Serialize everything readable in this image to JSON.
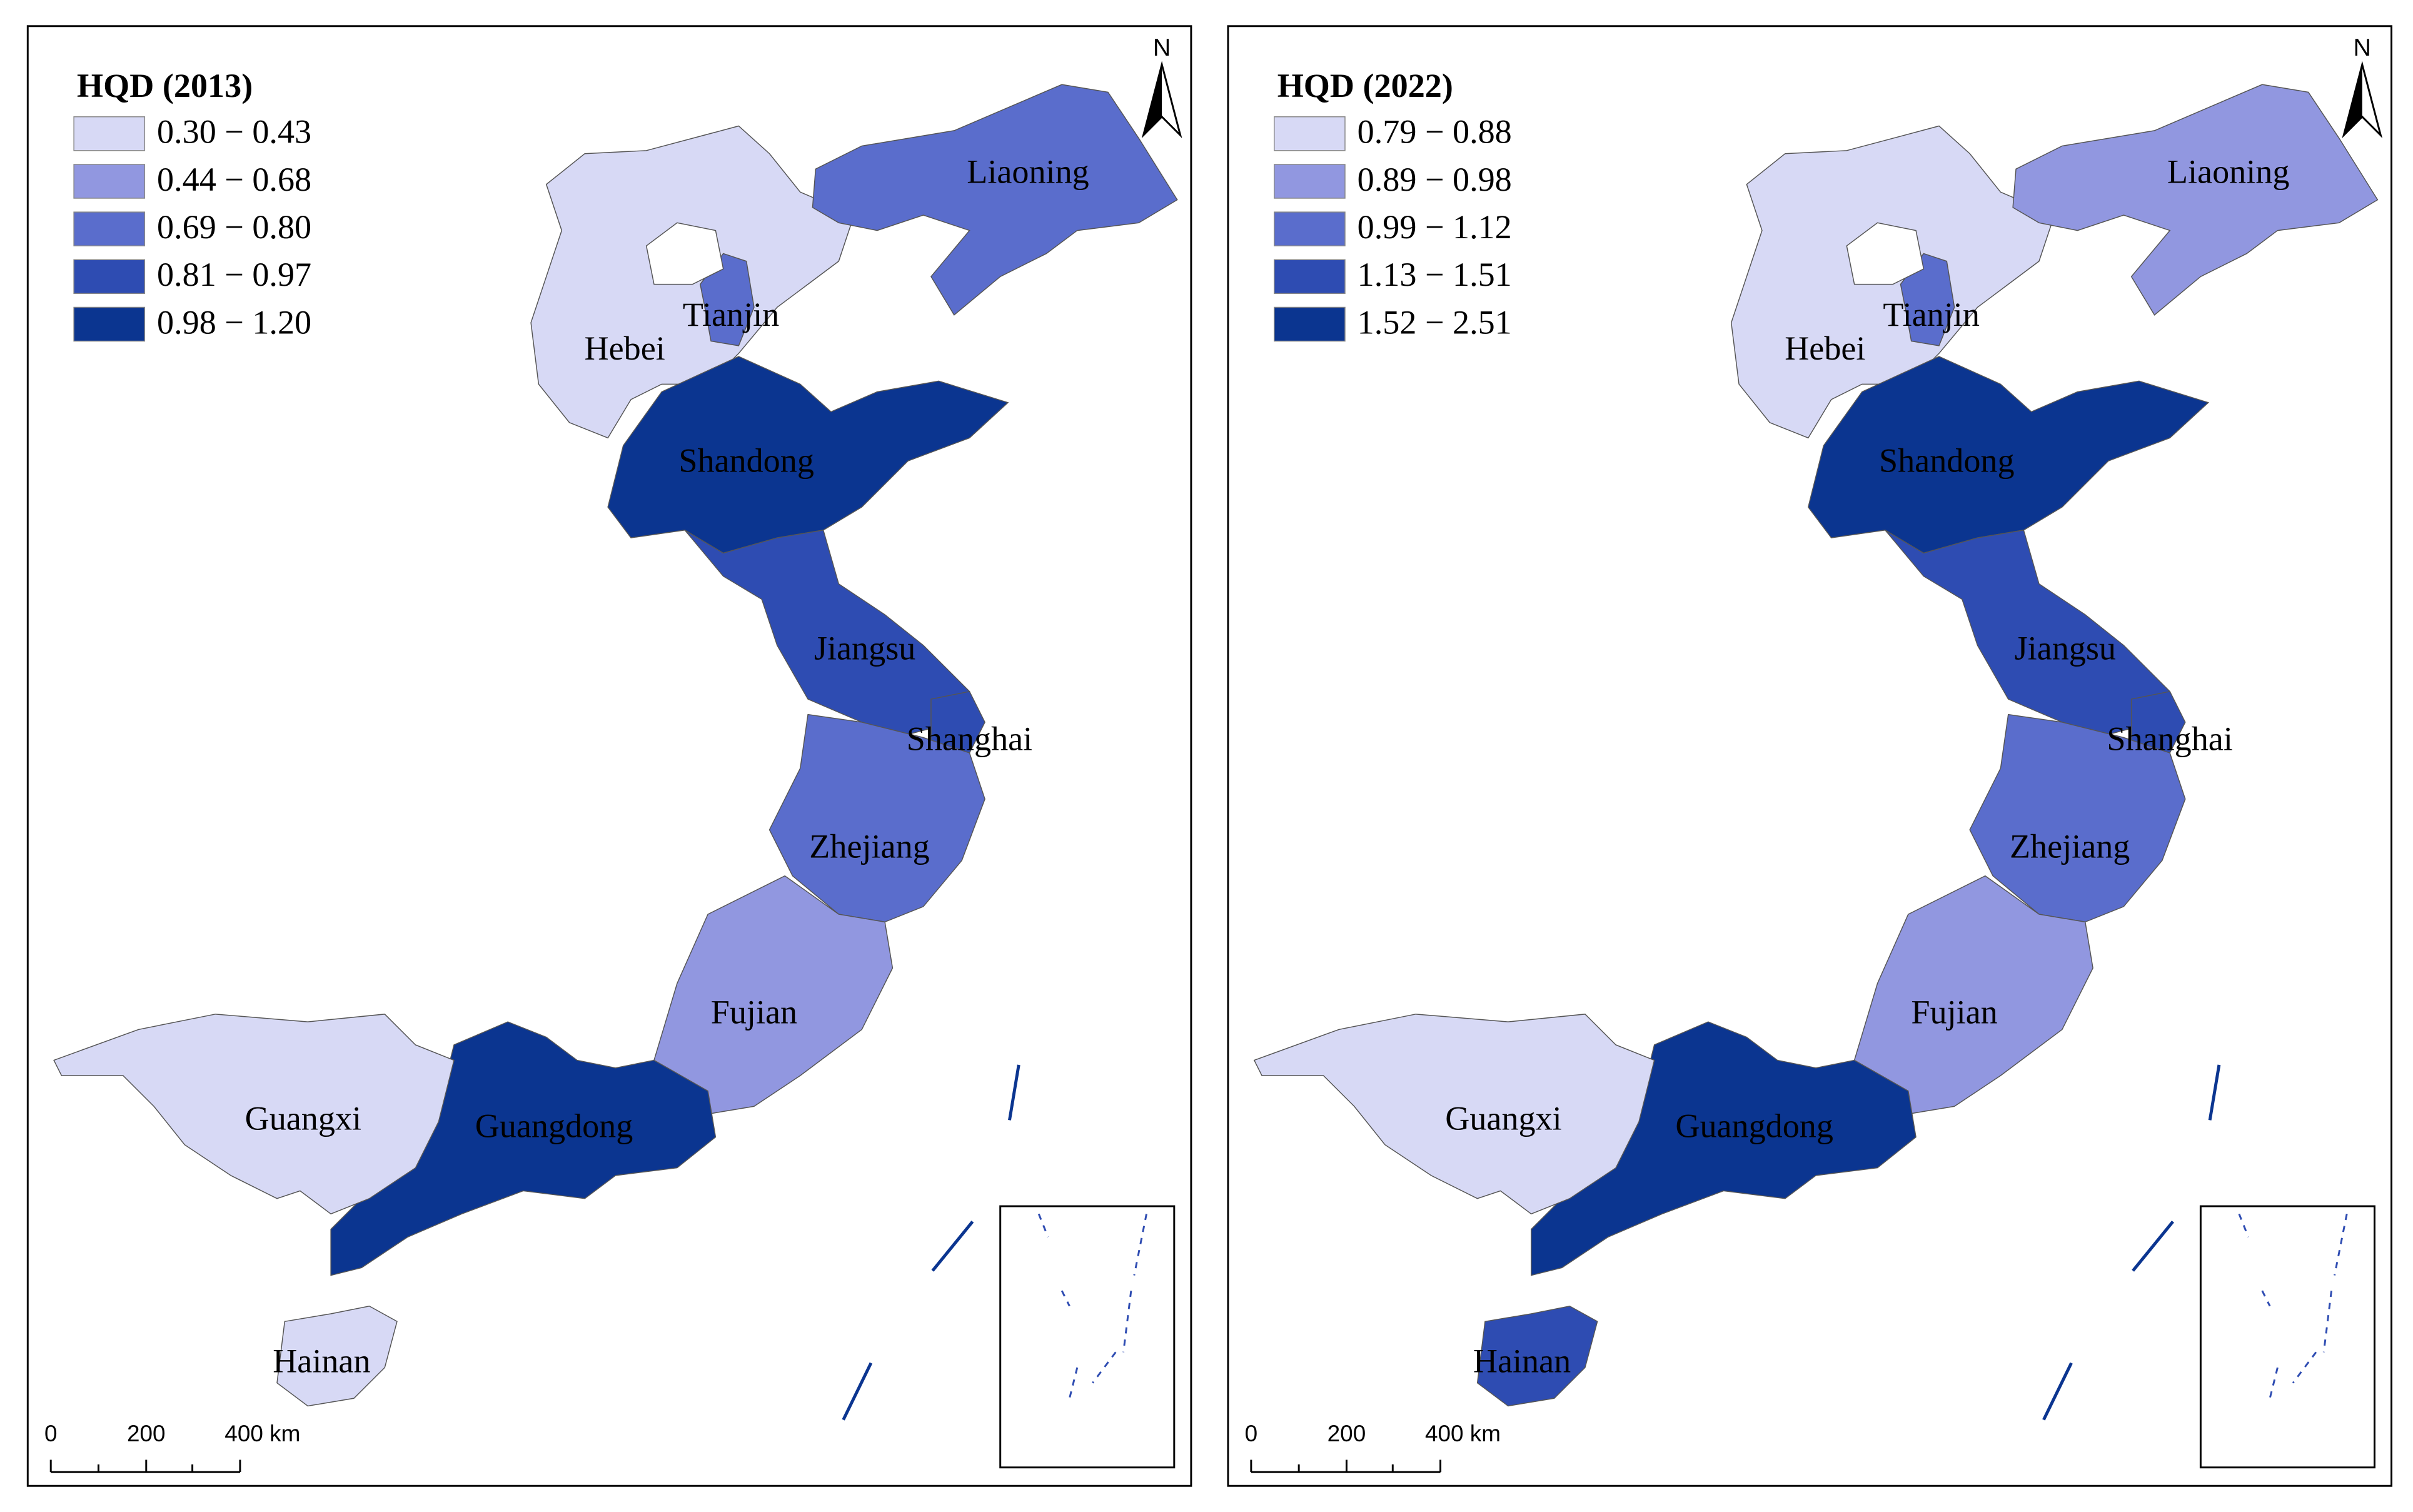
{
  "maps": [
    {
      "title": "HQD (2013)",
      "north": "N",
      "legend": [
        {
          "label": "0.30 − 0.43",
          "color": "#d7d9f5"
        },
        {
          "label": "0.44 − 0.68",
          "color": "#9197e0"
        },
        {
          "label": "0.69 − 0.80",
          "color": "#5a6dcc"
        },
        {
          "label": "0.81 − 0.97",
          "color": "#2e4cb2"
        },
        {
          "label": "0.98 − 1.20",
          "color": "#0b3590"
        }
      ],
      "regions": [
        {
          "name": "Hebei",
          "class": 0
        },
        {
          "name": "Tianjin",
          "class": 2
        },
        {
          "name": "Liaoning",
          "class": 2
        },
        {
          "name": "Shandong",
          "class": 4
        },
        {
          "name": "Jiangsu",
          "class": 3
        },
        {
          "name": "Shanghai",
          "class": 3
        },
        {
          "name": "Zhejiang",
          "class": 2
        },
        {
          "name": "Fujian",
          "class": 1
        },
        {
          "name": "Guangdong",
          "class": 4
        },
        {
          "name": "Guangxi",
          "class": 0
        },
        {
          "name": "Hainan",
          "class": 0
        }
      ],
      "scale": [
        "0",
        "200",
        "400 km"
      ]
    },
    {
      "title": "HQD (2022)",
      "north": "N",
      "legend": [
        {
          "label": "0.79 − 0.88",
          "color": "#d7d9f5"
        },
        {
          "label": "0.89 − 0.98",
          "color": "#9197e0"
        },
        {
          "label": "0.99 − 1.12",
          "color": "#5a6dcc"
        },
        {
          "label": "1.13 − 1.51",
          "color": "#2e4cb2"
        },
        {
          "label": "1.52 − 2.51",
          "color": "#0b3590"
        }
      ],
      "regions": [
        {
          "name": "Hebei",
          "class": 0
        },
        {
          "name": "Tianjin",
          "class": 2
        },
        {
          "name": "Liaoning",
          "class": 1
        },
        {
          "name": "Shandong",
          "class": 4
        },
        {
          "name": "Jiangsu",
          "class": 3
        },
        {
          "name": "Shanghai",
          "class": 3
        },
        {
          "name": "Zhejiang",
          "class": 2
        },
        {
          "name": "Fujian",
          "class": 1
        },
        {
          "name": "Guangdong",
          "class": 4
        },
        {
          "name": "Guangxi",
          "class": 0
        },
        {
          "name": "Hainan",
          "class": 3
        }
      ],
      "scale": [
        "0",
        "200",
        "400 km"
      ]
    }
  ]
}
